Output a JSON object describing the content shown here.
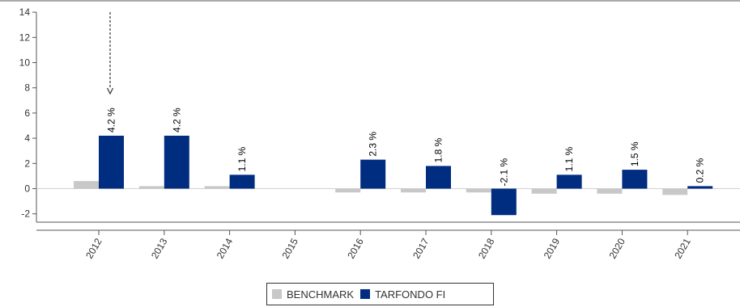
{
  "chart_data": {
    "type": "bar",
    "title": "",
    "xlabel": "",
    "ylabel": "",
    "ylim": [
      -3,
      14
    ],
    "yticks": [
      -2,
      0,
      2,
      4,
      6,
      8,
      10,
      12,
      14
    ],
    "categories": [
      "2012",
      "2013",
      "2014",
      "2015",
      "2016",
      "2017",
      "2018",
      "2019",
      "2020",
      "2021"
    ],
    "series": [
      {
        "name": "BENCHMARK",
        "color": "#c8c8c8",
        "values": [
          0.6,
          0.2,
          0.2,
          null,
          -0.3,
          -0.3,
          -0.3,
          -0.4,
          -0.4,
          -0.5
        ]
      },
      {
        "name": "TARFONDO FI",
        "color": "#002d80",
        "values": [
          4.2,
          4.2,
          1.1,
          null,
          2.3,
          1.8,
          -2.1,
          1.1,
          1.5,
          0.2
        ]
      }
    ],
    "data_labels": [
      "4.2 %",
      "4.2 %",
      "1.1 %",
      "",
      "2.3 %",
      "1.8 %",
      "-2.1 %",
      "1.1 %",
      "1.5 %",
      "0.2 %"
    ],
    "legend": "bottom-center",
    "grid": false
  }
}
